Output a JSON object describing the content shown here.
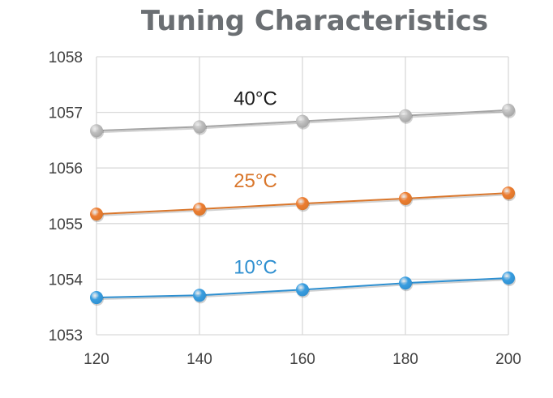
{
  "chart_data": {
    "type": "line",
    "title": "Tuning Characteristics",
    "xlabel": "",
    "ylabel": "",
    "x": [
      120,
      140,
      160,
      180,
      200
    ],
    "x_tick_labels": [
      "120",
      "140",
      "160",
      "180",
      "200"
    ],
    "y_tick_labels": [
      "1053",
      "1054",
      "1055",
      "1056",
      "1057",
      "1058"
    ],
    "xlim": [
      120,
      200
    ],
    "ylim": [
      1053,
      1058
    ],
    "grid": "on",
    "legend": "none",
    "series": [
      {
        "name": "40°C",
        "values": [
          1056.67,
          1056.74,
          1056.84,
          1056.94,
          1057.04
        ],
        "color": "#a5a5a5",
        "marker": "#bfbfbf"
      },
      {
        "name": "25°C",
        "values": [
          1055.17,
          1055.26,
          1055.36,
          1055.45,
          1055.55
        ],
        "color": "#d9762b",
        "marker": "#ed7d31"
      },
      {
        "name": "10°C",
        "values": [
          1053.67,
          1053.71,
          1053.81,
          1053.93,
          1054.02
        ],
        "color": "#2e8fd0",
        "marker": "#3a9ee0"
      }
    ]
  }
}
